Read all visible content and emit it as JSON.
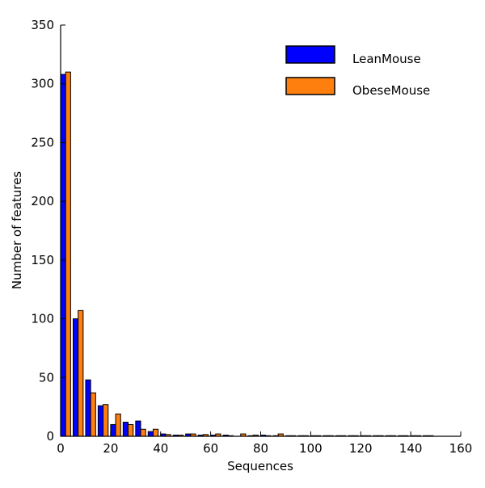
{
  "chart_data": {
    "type": "bar",
    "title": "",
    "xlabel": "Sequences",
    "ylabel": "Number of features",
    "xlim": [
      0,
      160
    ],
    "ylim": [
      0,
      350
    ],
    "xticks": [
      0,
      20,
      40,
      60,
      80,
      100,
      120,
      140,
      160
    ],
    "yticks": [
      0,
      50,
      100,
      150,
      200,
      250,
      300,
      350
    ],
    "bin_width": 5,
    "bin_starts": [
      0,
      5,
      10,
      15,
      20,
      25,
      30,
      35,
      40,
      45,
      50,
      55,
      60,
      65,
      70,
      75,
      80,
      85,
      90,
      95,
      100,
      105,
      110,
      115,
      120,
      125,
      130,
      135,
      140,
      145,
      150,
      155
    ],
    "grid": false,
    "legend_position": "top-right",
    "series": [
      {
        "name": "LeanMouse",
        "color": "#0000ff",
        "values": [
          308,
          100,
          48,
          26,
          10,
          12,
          13,
          4,
          2,
          1,
          2,
          1,
          1,
          1,
          0,
          0.5,
          1,
          0.5,
          0.5,
          0.5,
          0.5,
          0.5,
          0.5,
          0.5,
          0.5,
          0.5,
          0.5,
          0.5,
          0.5,
          0.5,
          0,
          0
        ]
      },
      {
        "name": "ObeseMouse",
        "color": "#ff7f0e",
        "values": [
          310,
          107,
          37,
          27,
          19,
          10,
          6,
          6,
          1.5,
          1,
          2,
          1.5,
          2,
          0.5,
          2,
          1,
          0.5,
          2,
          0.5,
          0.5,
          0.5,
          0.5,
          0.5,
          0.5,
          0.5,
          0.5,
          0.5,
          0.5,
          0.5,
          0.5,
          0,
          0
        ]
      }
    ]
  }
}
